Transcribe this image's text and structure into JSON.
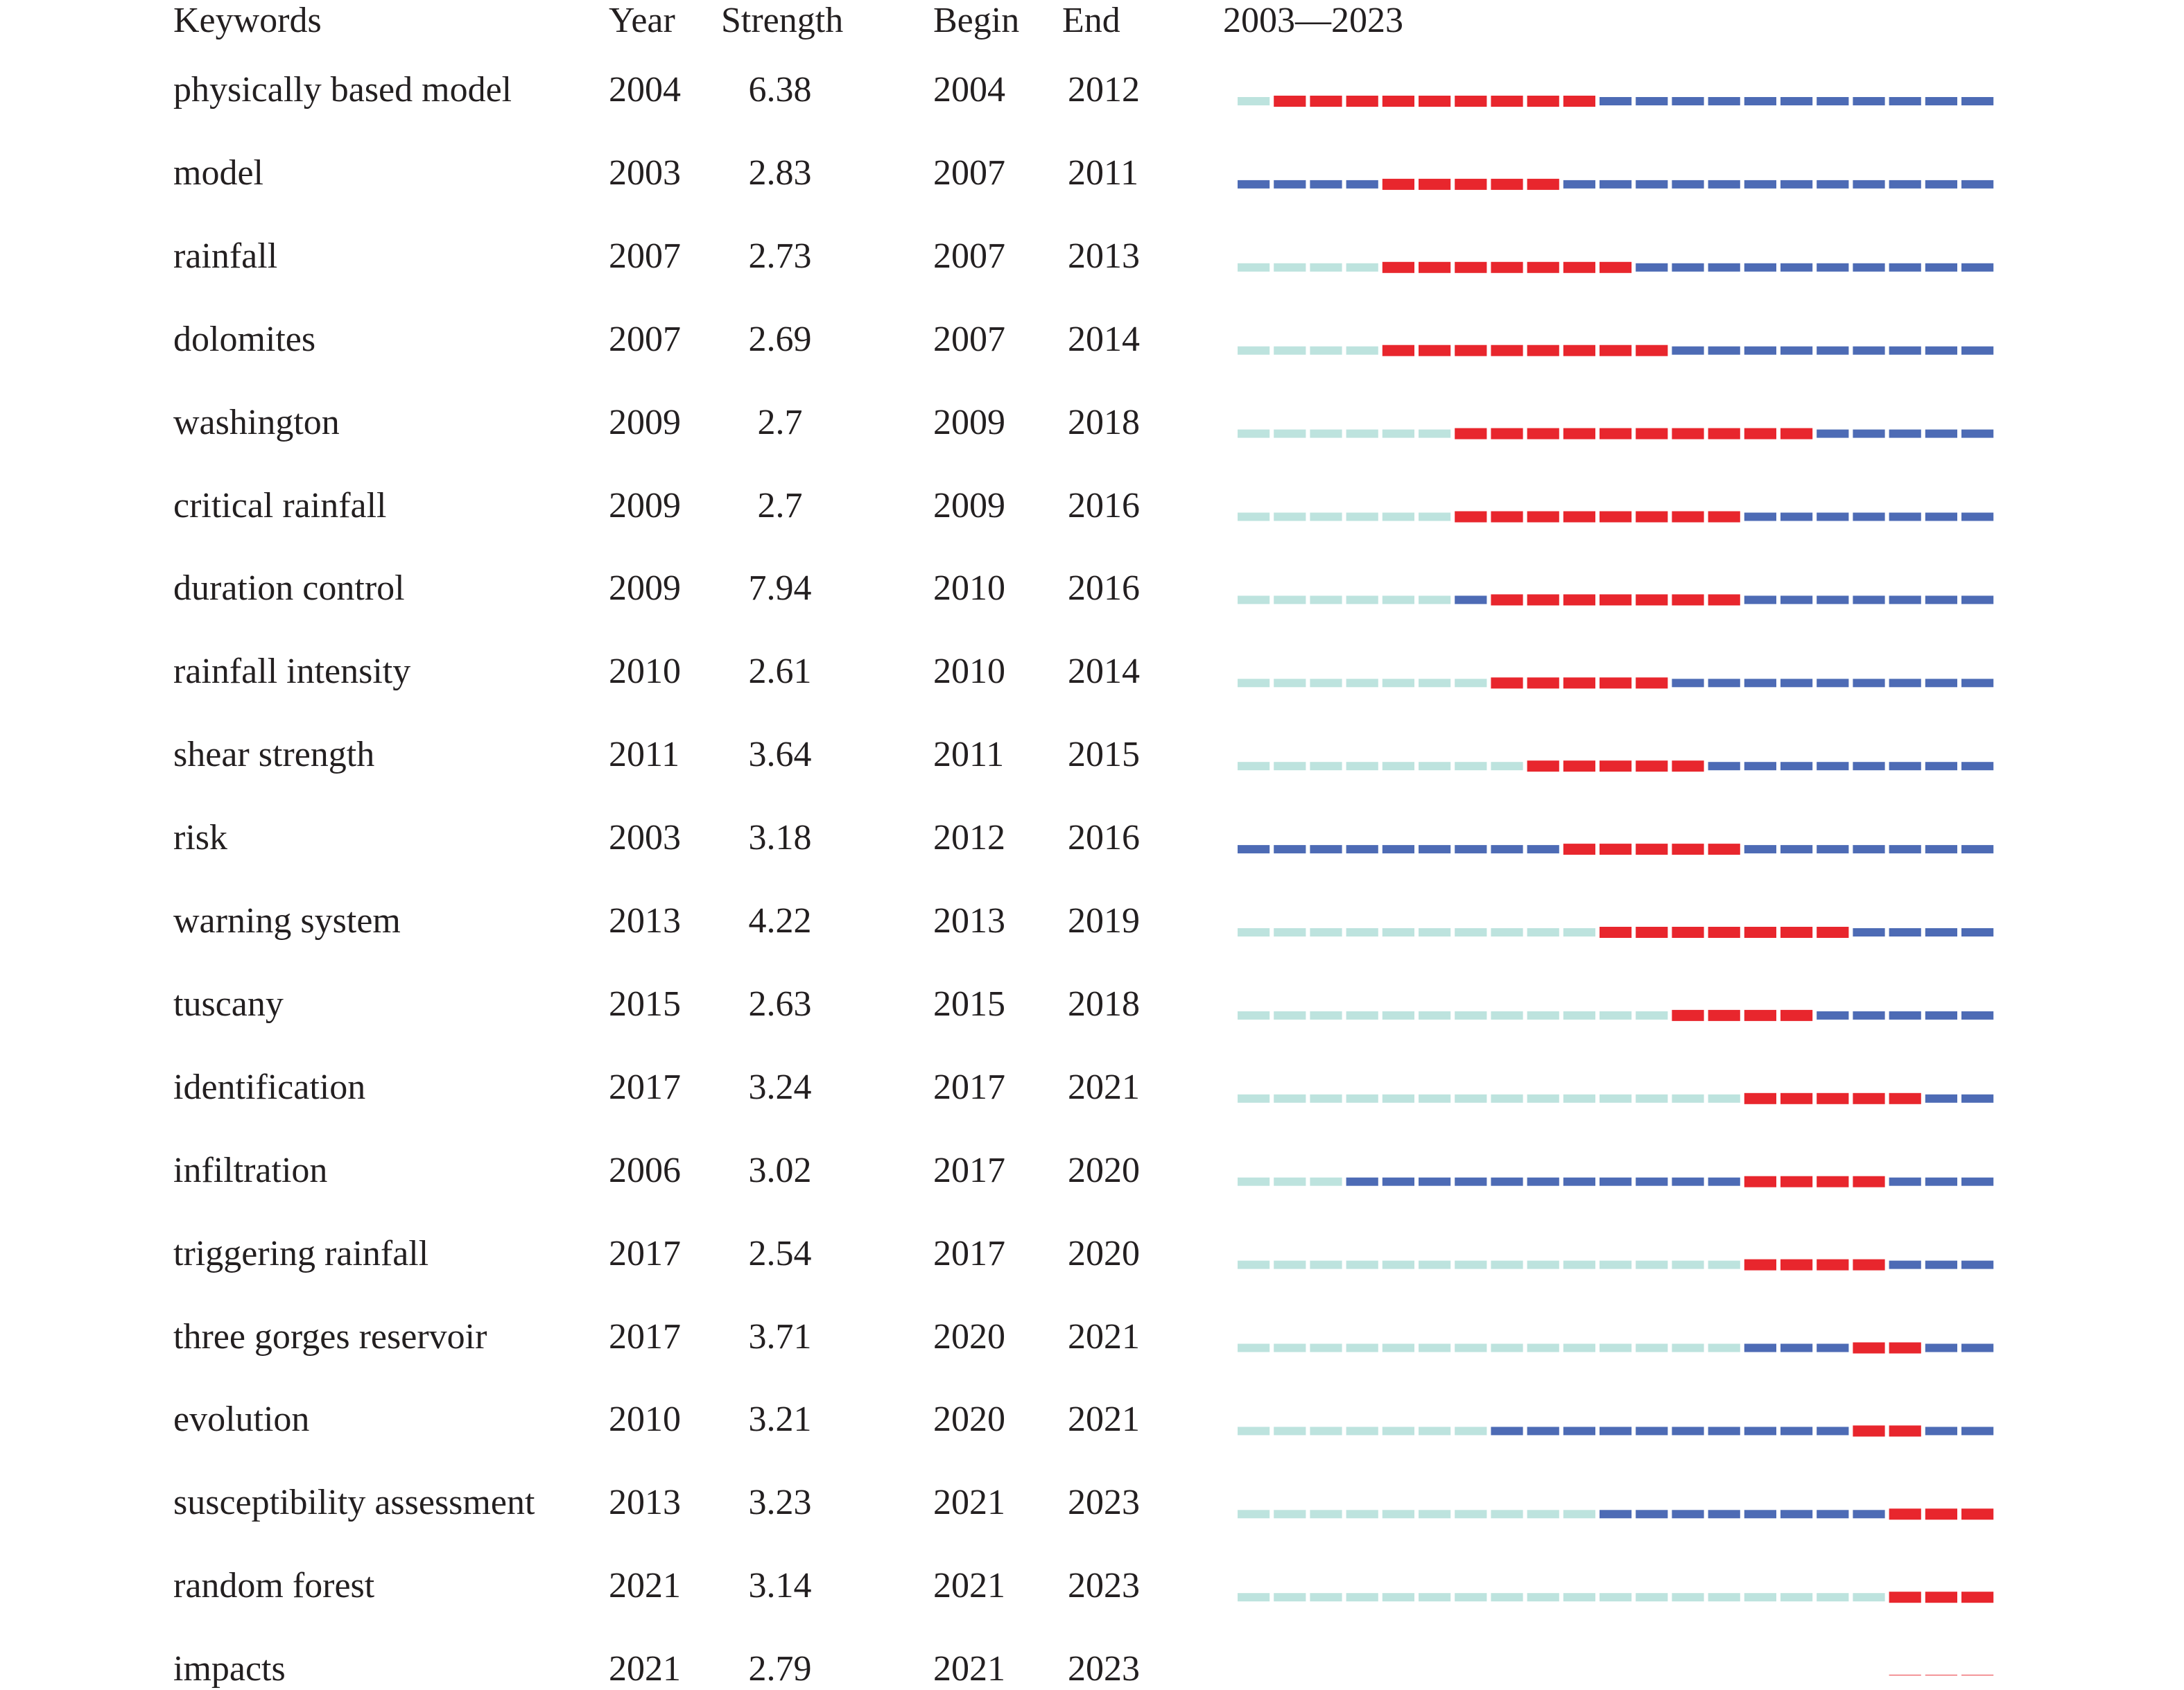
{
  "chart_data": {
    "type": "table",
    "headers": {
      "keywords": "Keywords",
      "year": "Year",
      "strength": "Strength",
      "begin": "Begin",
      "end": "End",
      "range": "2003—2023"
    },
    "range_start": 2003,
    "range_end": 2023,
    "colors": {
      "burst": "#e8262d",
      "active": "#4d6bb5",
      "inactive": "#bde3de"
    },
    "rows": [
      {
        "keyword": "physically based model",
        "year": "2004",
        "strength": "6.38",
        "begin": "2004",
        "end": "2012"
      },
      {
        "keyword": "model",
        "year": "2003",
        "strength": "2.83",
        "begin": "2007",
        "end": "2011"
      },
      {
        "keyword": "rainfall",
        "year": "2007",
        "strength": "2.73",
        "begin": "2007",
        "end": "2013"
      },
      {
        "keyword": "dolomites",
        "year": "2007",
        "strength": "2.69",
        "begin": "2007",
        "end": "2014"
      },
      {
        "keyword": "washington",
        "year": "2009",
        "strength": "2.7",
        "begin": "2009",
        "end": "2018"
      },
      {
        "keyword": "critical rainfall",
        "year": "2009",
        "strength": "2.7",
        "begin": "2009",
        "end": "2016"
      },
      {
        "keyword": "duration control",
        "year": "2009",
        "strength": "7.94",
        "begin": "2010",
        "end": "2016"
      },
      {
        "keyword": "rainfall intensity",
        "year": "2010",
        "strength": "2.61",
        "begin": "2010",
        "end": "2014"
      },
      {
        "keyword": "shear strength",
        "year": "2011",
        "strength": "3.64",
        "begin": "2011",
        "end": "2015"
      },
      {
        "keyword": "risk",
        "year": "2003",
        "strength": "3.18",
        "begin": "2012",
        "end": "2016"
      },
      {
        "keyword": "warning system",
        "year": "2013",
        "strength": "4.22",
        "begin": "2013",
        "end": "2019"
      },
      {
        "keyword": "tuscany",
        "year": "2015",
        "strength": "2.63",
        "begin": "2015",
        "end": "2018"
      },
      {
        "keyword": "identification",
        "year": "2017",
        "strength": "3.24",
        "begin": "2017",
        "end": "2021"
      },
      {
        "keyword": "infiltration",
        "year": "2006",
        "strength": "3.02",
        "begin": "2017",
        "end": "2020"
      },
      {
        "keyword": "triggering rainfall",
        "year": "2017",
        "strength": "2.54",
        "begin": "2017",
        "end": "2020"
      },
      {
        "keyword": "three gorges reservoir",
        "year": "2017",
        "strength": "3.71",
        "begin": "2020",
        "end": "2021"
      },
      {
        "keyword": "evolution",
        "year": "2010",
        "strength": "3.21",
        "begin": "2020",
        "end": "2021"
      },
      {
        "keyword": "susceptibility assessment",
        "year": "2013",
        "strength": "3.23",
        "begin": "2021",
        "end": "2023"
      },
      {
        "keyword": "random forest",
        "year": "2021",
        "strength": "3.14",
        "begin": "2021",
        "end": "2023"
      },
      {
        "keyword": "impacts",
        "year": "2021",
        "strength": "2.79",
        "begin": "2021",
        "end": "2023"
      }
    ]
  }
}
